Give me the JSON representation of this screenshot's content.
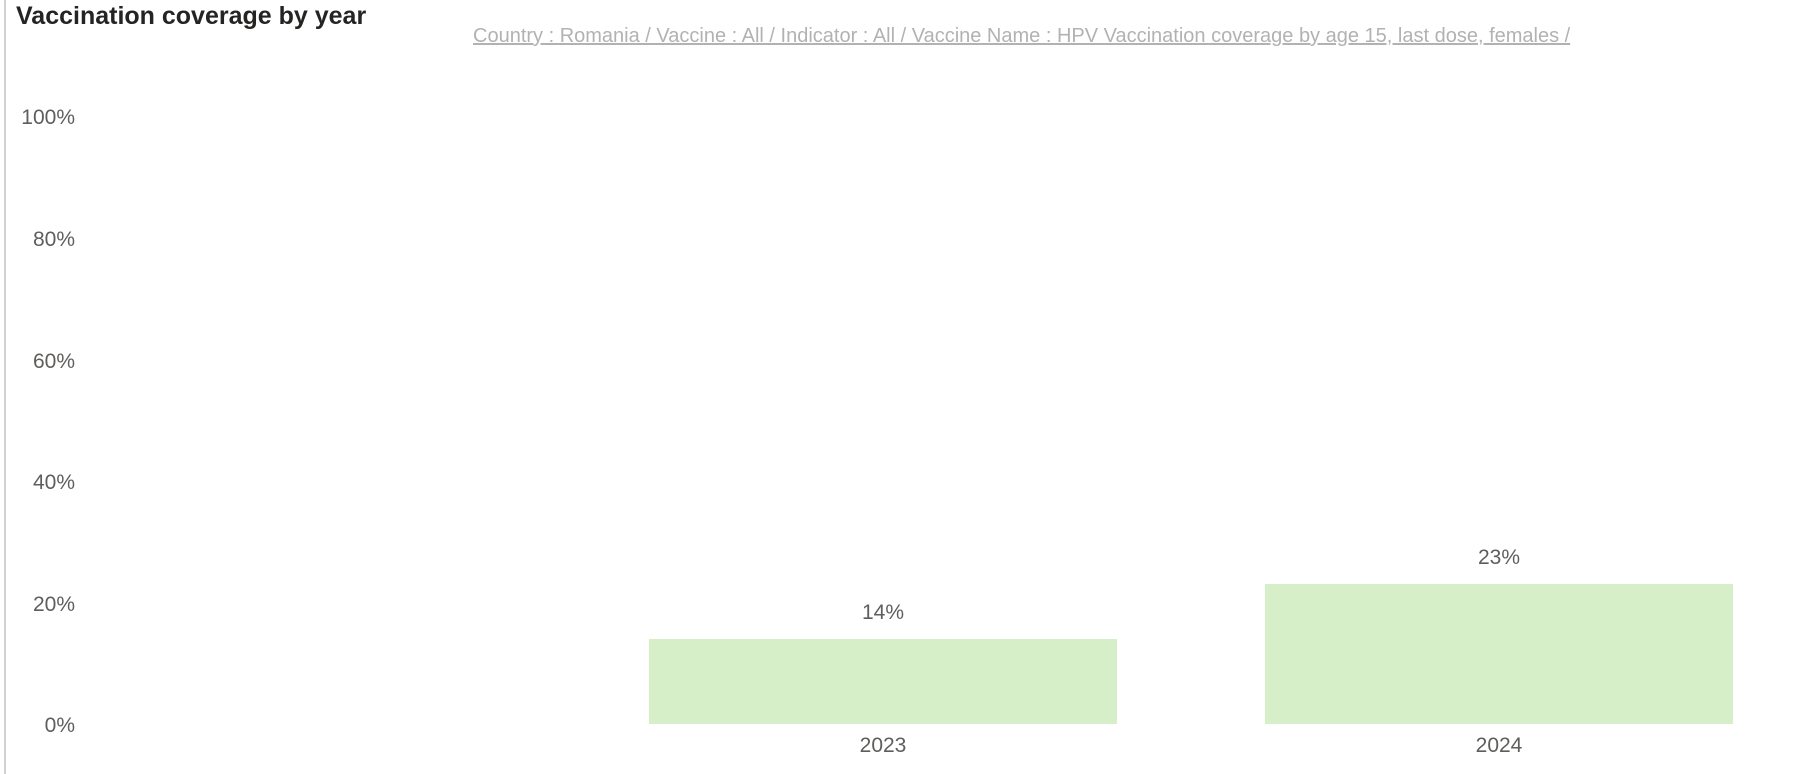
{
  "title": "Vaccination coverage by year",
  "breadcrumb": {
    "text": "Country : Romania / Vaccine : All / Indicator : All / Vaccine Name : HPV Vaccination coverage by age 15, last dose, females /"
  },
  "colors": {
    "bar_fill": "#d6efc8",
    "title_text": "#252423",
    "axis_label_text": "#605e5c",
    "breadcrumb_text": "#b2b2b2",
    "left_divider": "#d1d1d1",
    "background": "#ffffff"
  },
  "chart_data": {
    "type": "bar",
    "title": "Vaccination coverage by year",
    "categories": [
      "2023",
      "2024"
    ],
    "values": [
      14,
      23
    ],
    "data_labels": [
      "14%",
      "23%"
    ],
    "yticks": [
      "100%",
      "80%",
      "60%",
      "40%",
      "20%",
      "0%"
    ],
    "ylim": [
      0,
      100
    ],
    "xlabel": "",
    "ylabel": "",
    "grid": false,
    "legend": "none",
    "filters_text": "Country : Romania / Vaccine : All / Indicator : All / Vaccine Name : HPV Vaccination coverage by age 15, last dose, females /"
  }
}
